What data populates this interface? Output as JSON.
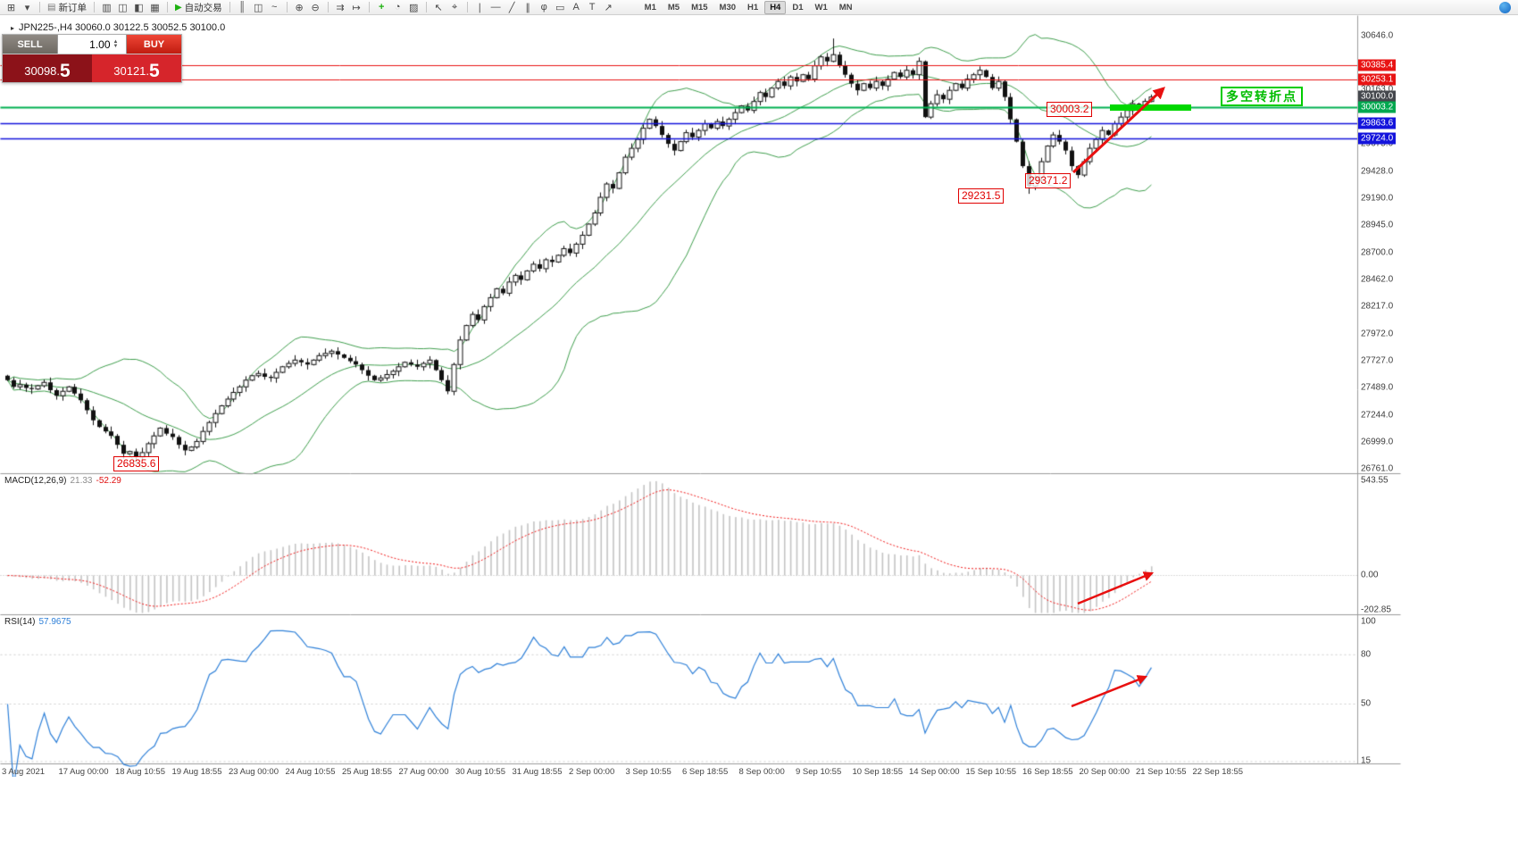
{
  "toolbar": {
    "groups": [
      [
        {
          "name": "new-chart-button",
          "glyph": "⊞"
        },
        {
          "name": "profiles-button",
          "glyph": "▾"
        }
      ],
      [
        {
          "name": "new-order-button",
          "glyph": "▤",
          "label": "新订单",
          "color": "#777777"
        }
      ],
      [
        {
          "name": "market-watch-button",
          "glyph": "▥"
        },
        {
          "name": "data-window-button",
          "glyph": "◫"
        },
        {
          "name": "navigator-button",
          "glyph": "◧"
        },
        {
          "name": "terminal-button",
          "glyph": "▦"
        }
      ],
      [
        {
          "name": "autotrading-button",
          "glyph": "▶",
          "label": "自动交易",
          "color": "#1db110"
        }
      ],
      [
        {
          "name": "bar-chart-button",
          "glyph": "║"
        },
        {
          "name": "candlestick-chart-button",
          "glyph": "◫"
        },
        {
          "name": "line-chart-button",
          "glyph": "~"
        }
      ],
      [
        {
          "name": "zoom-in-button",
          "glyph": "⊕"
        },
        {
          "name": "zoom-out-button",
          "glyph": "⊖"
        }
      ],
      [
        {
          "name": "auto-scroll-button",
          "glyph": "⇉"
        },
        {
          "name": "chart-shift-button",
          "glyph": "↦"
        }
      ],
      [
        {
          "name": "indicators-button",
          "glyph": "+",
          "color": "#1db110"
        },
        {
          "name": "periods-button",
          "glyph": "◔"
        },
        {
          "name": "templates-button",
          "glyph": "▨"
        }
      ],
      [
        {
          "name": "cursor-button",
          "glyph": "↖"
        },
        {
          "name": "crosshair-button",
          "glyph": "⌖"
        }
      ],
      [
        {
          "name": "vertical-line-button",
          "glyph": "∣"
        },
        {
          "name": "horizontal-line-button",
          "glyph": "―"
        },
        {
          "name": "trendline-button",
          "glyph": "╱"
        },
        {
          "name": "channel-button",
          "glyph": "∥"
        },
        {
          "name": "fibonacci-button",
          "glyph": "φ"
        },
        {
          "name": "shapes-button",
          "glyph": "▭"
        },
        {
          "name": "text-button",
          "glyph": "A"
        },
        {
          "name": "label-button",
          "glyph": "T"
        },
        {
          "name": "arrows-button",
          "glyph": "↗"
        }
      ]
    ],
    "timeframes": [
      "M1",
      "M5",
      "M15",
      "M30",
      "H1",
      "H4",
      "D1",
      "W1",
      "MN"
    ],
    "active_timeframe": "H4"
  },
  "symbol_line": "JPN225-,H4  30060.0 30122.5 30052.5 30100.0",
  "trade_panel": {
    "sell_label": "SELL",
    "buy_label": "BUY",
    "volume_value": "1.00",
    "sell_price": {
      "main": "30098.",
      "big": "5"
    },
    "buy_price": {
      "main": "30121.",
      "big": "5"
    }
  },
  "price_axis": {
    "gridline_labels": [
      "30646.0",
      "30163.0",
      "29675.0",
      "29428.0",
      "29190.0",
      "28945.0",
      "28700.0",
      "28462.0",
      "28217.0",
      "27972.0",
      "27727.0",
      "27489.0",
      "27244.0",
      "26999.0",
      "26761.0"
    ],
    "tags": [
      {
        "text": "30385.4",
        "bg": "#e81414"
      },
      {
        "text": "30253.1",
        "bg": "#e81414"
      },
      {
        "text": "30100.0",
        "bg": "#45484d"
      },
      {
        "text": "30003.2",
        "bg": "#00a84f"
      },
      {
        "text": "29863.6",
        "bg": "#1414dc"
      },
      {
        "text": "29724.0",
        "bg": "#1414dc"
      }
    ]
  },
  "time_axis": {
    "labels": [
      "3 Aug 2021",
      "17 Aug 00:00",
      "18 Aug 10:55",
      "19 Aug 18:55",
      "23 Aug 00:00",
      "24 Aug 10:55",
      "25 Aug 18:55",
      "27 Aug 00:00",
      "30 Aug 10:55",
      "31 Aug 18:55",
      "2 Sep 00:00",
      "3 Sep 10:55",
      "6 Sep 18:55",
      "8 Sep 00:00",
      "9 Sep 10:55",
      "10 Sep 18:55",
      "14 Sep 00:00",
      "15 Sep 10:55",
      "16 Sep 18:55",
      "20 Sep 00:00",
      "21 Sep 10:55",
      "22 Sep 18:55"
    ]
  },
  "indicators": {
    "macd": {
      "label": "MACD(12,26,9)",
      "value_main": "21.33",
      "value_signal": "-52.29",
      "axis_labels": [
        "543.55",
        "0.00",
        "-202.85"
      ],
      "histogram_color": "#c4c4c4",
      "signal_color": "#f01818"
    },
    "rsi": {
      "label": "RSI(14)",
      "value": "57.9675",
      "axis_labels": [
        "100",
        "80",
        "50",
        "15"
      ],
      "levels": [
        80,
        50,
        15
      ],
      "line_color": "#2f80d8"
    }
  },
  "annotations": {
    "price_labels": [
      {
        "text": "26835.6"
      },
      {
        "text": "29231.5"
      },
      {
        "text": "29371.2"
      },
      {
        "text": "30003.2"
      }
    ],
    "note": {
      "text": "多空转折点",
      "color": "#00bd00"
    },
    "green_bar_color": "#00d800",
    "arrow_color": "#e81010"
  },
  "chart_data": {
    "type": "candlestick",
    "symbol": "JPN225-",
    "timeframe": "H4",
    "current_ohlc": {
      "open": 30060.0,
      "high": 30122.5,
      "low": 30052.5,
      "close": 30100.0
    },
    "ylim": [
      26700,
      30840
    ],
    "bollinger": {
      "period": 20,
      "deviation": 2,
      "color": "#3f9e4d"
    },
    "hlines": [
      {
        "price": 30385.4,
        "color": "#e81414",
        "width": 1
      },
      {
        "price": 30253.1,
        "color": "#e81414",
        "width": 1
      },
      {
        "price": 30003.2,
        "color": "#00b050",
        "width": 2
      },
      {
        "price": 29863.6,
        "color": "#1414dc",
        "width": 1.5
      },
      {
        "price": 29724.0,
        "color": "#1414dc",
        "width": 1.5
      }
    ],
    "candles": {
      "first_open": 27600,
      "closes": [
        27560,
        27500,
        27520,
        27490,
        27480,
        27510,
        27540,
        27470,
        27420,
        27460,
        27500,
        27440,
        27380,
        27290,
        27200,
        27140,
        27100,
        27060,
        26980,
        26900,
        26920,
        26870,
        26910,
        26990,
        27060,
        27130,
        27080,
        27050,
        26980,
        26930,
        26960,
        27010,
        27100,
        27180,
        27260,
        27330,
        27390,
        27450,
        27500,
        27560,
        27600,
        27620,
        27590,
        27580,
        27630,
        27680,
        27710,
        27740,
        27720,
        27700,
        27740,
        27780,
        27800,
        27820,
        27790,
        27760,
        27730,
        27700,
        27650,
        27600,
        27560,
        27580,
        27610,
        27640,
        27680,
        27720,
        27700,
        27680,
        27710,
        27740,
        27650,
        27560,
        27460,
        27700,
        27920,
        28050,
        28150,
        28100,
        28220,
        28300,
        28380,
        28340,
        28440,
        28500,
        28460,
        28540,
        28600,
        28560,
        28640,
        28620,
        28680,
        28740,
        28700,
        28780,
        28860,
        28960,
        29060,
        29200,
        29320,
        29280,
        29420,
        29560,
        29640,
        29720,
        29820,
        29900,
        29840,
        29760,
        29680,
        29620,
        29700,
        29780,
        29740,
        29800,
        29860,
        29820,
        29880,
        29840,
        29900,
        29960,
        30020,
        29980,
        30060,
        30140,
        30100,
        30180,
        30240,
        30200,
        30280,
        30240,
        30300,
        30260,
        30380,
        30460,
        30420,
        30480,
        30380,
        30300,
        30220,
        30160,
        30220,
        30180,
        30240,
        30200,
        30260,
        30320,
        30280,
        30340,
        30300,
        30420,
        29920,
        30040,
        30120,
        30080,
        30160,
        30220,
        30180,
        30260,
        30300,
        30340,
        30280,
        30180,
        30240,
        30100,
        29900,
        29700,
        29480,
        29300,
        29380,
        29520,
        29660,
        29760,
        29700,
        29620,
        29480,
        29400,
        29520,
        29640,
        29720,
        29800,
        29760,
        29860,
        29920,
        29980,
        30040,
        30000,
        30060,
        30100
      ],
      "wick_overrides": [
        {
          "i": 21,
          "low": 26835.6
        },
        {
          "i": 135,
          "high": 30625
        },
        {
          "i": 167,
          "low": 29231.5
        },
        {
          "i": 175,
          "low": 29371.2
        },
        {
          "i": 187,
          "open": 30060.0,
          "high": 30122.5,
          "low": 30052.5
        }
      ]
    }
  }
}
